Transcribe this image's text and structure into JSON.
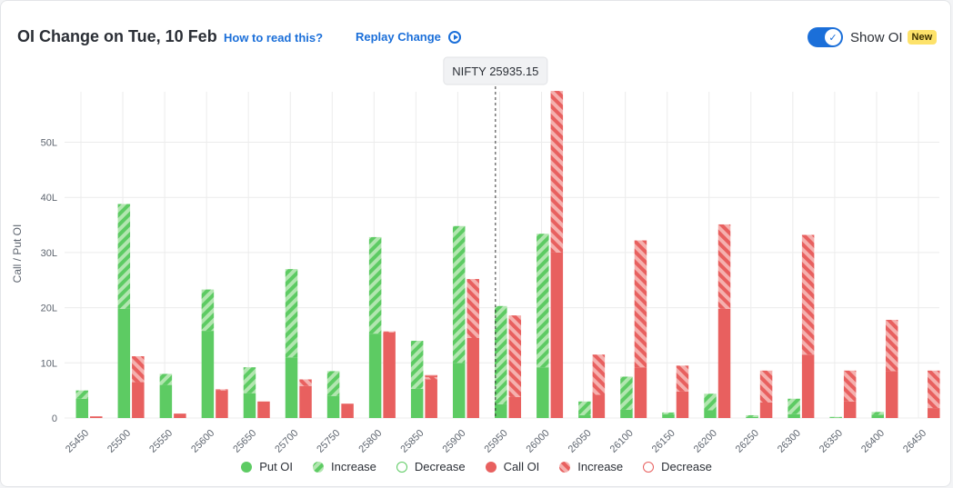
{
  "header": {
    "title": "OI Change on Tue, 10 Feb",
    "how_to_read": "How to read this?",
    "replay_change": "Replay Change",
    "toggle_label": "Show OI",
    "new_badge": "New"
  },
  "colors": {
    "put": "#5dcb63",
    "put_light": "#b2e6b0",
    "call": "#e8605f",
    "call_light": "#f5b0ae"
  },
  "chart_data": {
    "type": "bar",
    "ylabel": "Call / Put OI",
    "ylim": [
      0,
      60
    ],
    "yticks": [
      0,
      10,
      20,
      30,
      40,
      50
    ],
    "ytick_labels": [
      "0",
      "10L",
      "20L",
      "30L",
      "40L",
      "50L"
    ],
    "spot_label": "NIFTY 25935.15",
    "spot_value": 25935.15,
    "categories": [
      "25450",
      "25500",
      "25550",
      "25600",
      "25650",
      "25700",
      "25750",
      "25800",
      "25850",
      "25900",
      "25950",
      "26000",
      "26050",
      "26100",
      "26150",
      "26200",
      "26250",
      "26300",
      "26350",
      "26400",
      "26450"
    ],
    "series": [
      {
        "name": "Put OI",
        "values": [
          3.5,
          19.8,
          6.0,
          15.8,
          4.5,
          11.0,
          4.0,
          15.3,
          5.3,
          10.0,
          2.5,
          9.2,
          0.5,
          1.5,
          0.7,
          1.4,
          0.2,
          0.7,
          0.1,
          0.6,
          0.0
        ]
      },
      {
        "name": "Increase",
        "values": [
          1.5,
          19.0,
          2.0,
          7.5,
          4.7,
          16.0,
          4.5,
          17.5,
          8.7,
          24.8,
          17.8,
          24.2,
          2.5,
          6.0,
          0.3,
          3.0,
          0.3,
          2.8,
          0.1,
          0.5,
          0.0
        ]
      },
      {
        "name": "Decrease",
        "values": [
          0,
          0,
          0,
          0,
          0,
          0,
          0,
          0,
          0,
          0,
          0,
          0,
          0,
          0,
          0,
          0,
          0,
          0,
          0,
          0,
          0
        ]
      },
      {
        "name": "Call OI",
        "values": [
          0.3,
          6.5,
          0.8,
          5.0,
          3.0,
          5.8,
          2.6,
          15.5,
          7.0,
          14.5,
          3.8,
          30.0,
          4.2,
          9.2,
          4.8,
          19.8,
          2.8,
          11.5,
          3.0,
          8.5,
          1.8
        ]
      },
      {
        "name": "Increase",
        "values": [
          0.0,
          4.7,
          0.0,
          0.2,
          0.0,
          1.2,
          0.0,
          0.2,
          0.5,
          10.7,
          14.8,
          29.3,
          7.3,
          23.0,
          4.7,
          15.3,
          5.8,
          21.7,
          5.6,
          9.3,
          6.8
        ]
      },
      {
        "name": "Decrease",
        "values": [
          0,
          0,
          0,
          0,
          0,
          0,
          0,
          0,
          0.2,
          0,
          0,
          0,
          0,
          0,
          0,
          0,
          0,
          0,
          0,
          0,
          0
        ]
      }
    ],
    "legend_position": "bottom",
    "grid": true
  }
}
